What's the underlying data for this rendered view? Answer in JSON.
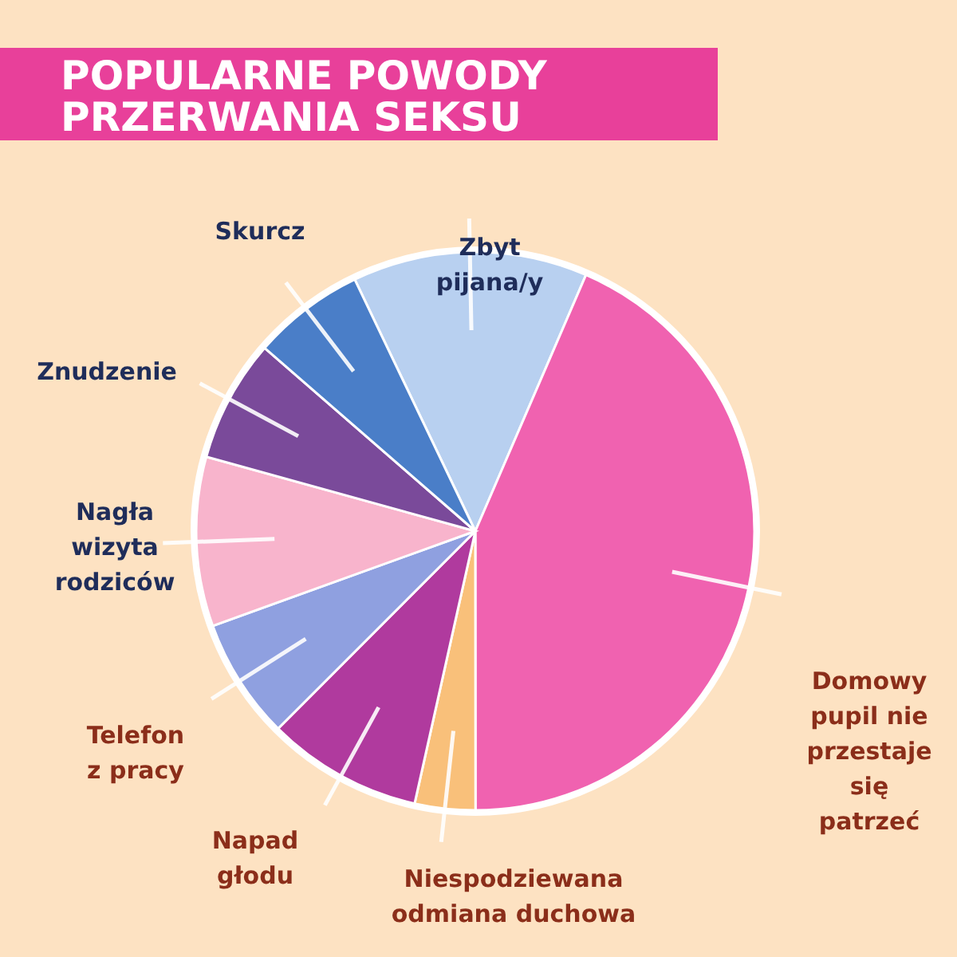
{
  "chart_data": {
    "type": "pie",
    "title": "POPULARNE POWODY PRZERWANIA SEKSU",
    "categories": [
      "Zbyt pijana/y",
      "Domowy pupil nie przestaje się patrzeć",
      "Niespodziewana odmiana duchowa",
      "Napad głodu",
      "Telefon z pracy",
      "Nagła wizyta rodziców",
      "Znudzenie",
      "Skurcz"
    ],
    "values": [
      13.6,
      43.5,
      3.5,
      9,
      7,
      9.8,
      7.1,
      6.5
    ],
    "colors": [
      "#b8d0f0",
      "#f062b0",
      "#f9c07a",
      "#b03a9e",
      "#8fa0e0",
      "#f8b4cc",
      "#7a4a9a",
      "#4a7ec8"
    ]
  }
}
